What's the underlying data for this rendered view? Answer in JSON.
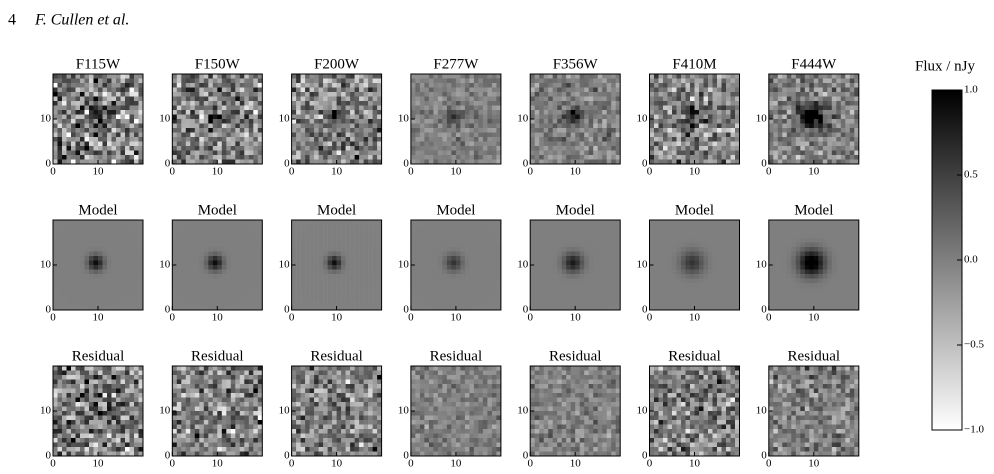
{
  "header": {
    "page_number": "4",
    "authors": "F. Cullen et al."
  },
  "panels": {
    "columns": [
      "F115W",
      "F150W",
      "F200W",
      "F277W",
      "F356W",
      "F410M",
      "F444W"
    ],
    "row_titles": [
      "Model",
      "Residual"
    ]
  },
  "axes": {
    "lim": [
      0,
      20
    ],
    "ticks": [
      0,
      10
    ]
  },
  "colorbar": {
    "label": "Flux / nJy",
    "lim": [
      -1,
      1
    ],
    "ticks": [
      {
        "value": 1,
        "label": "1.0"
      },
      {
        "value": 0.5,
        "label": "0.5"
      },
      {
        "value": 0,
        "label": "0.0"
      },
      {
        "value": -0.5,
        "label": "−0.5"
      },
      {
        "value": -1,
        "label": "−1.0"
      }
    ]
  }
}
